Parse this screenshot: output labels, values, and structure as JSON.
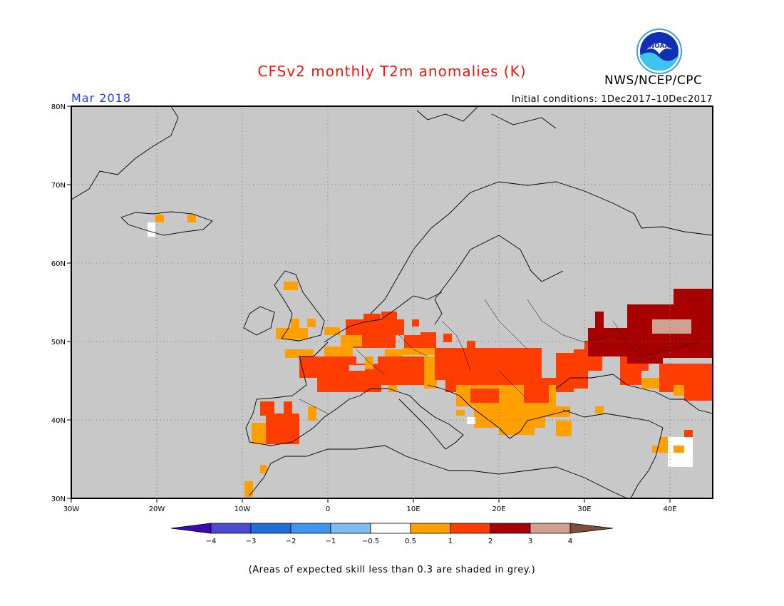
{
  "header": {
    "title": "CFSv2 monthly T2m anomalies (K)",
    "month": "Mar 2018",
    "initial_conditions": "Initial conditions: 1Dec2017–10Dec2017",
    "organization": "NWS/NCEP/CPC",
    "logo_text": "NOAA"
  },
  "map": {
    "background_color": "#c8c8c8",
    "latitude_labels": [
      "80N",
      "70N",
      "60N",
      "50N",
      "40N",
      "30N"
    ],
    "longitude_labels": [
      "30W",
      "20W",
      "10W",
      "0",
      "10E",
      "20E",
      "30E",
      "40E"
    ]
  },
  "legend": {
    "colors": [
      "#3a0cae",
      "#4a4ad2",
      "#1f6fd6",
      "#3d97ee",
      "#7fbcf2",
      "#ffffff",
      "#ff9f00",
      "#ff3d00",
      "#a80000",
      "#d2a090",
      "#7a4f3c"
    ],
    "tick_labels": [
      "−4",
      "−3",
      "−2",
      "−1",
      "−0.5",
      "0.5",
      "1",
      "2",
      "3",
      "4"
    ]
  },
  "footnote": "(Areas of expected skill less than 0.3 are shaded in grey.)"
}
